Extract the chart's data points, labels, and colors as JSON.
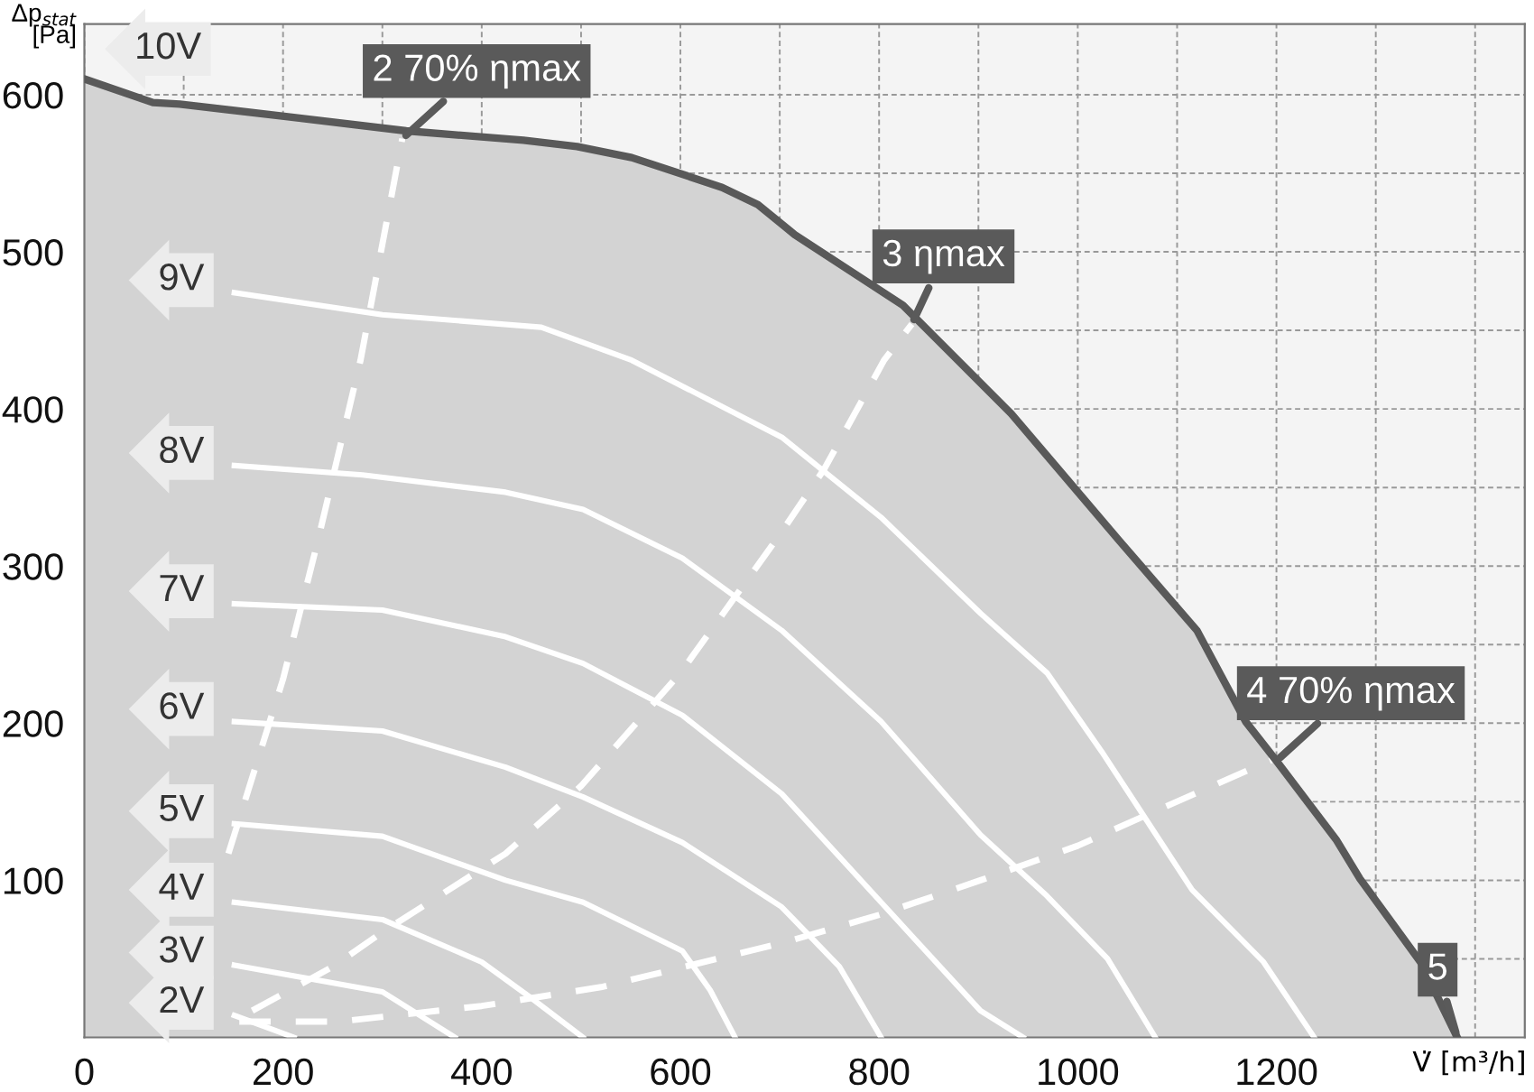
{
  "chart_data": {
    "type": "line",
    "xlabel": "V̇ [m³/h]",
    "ylabel": "Δp$_{stat}$\n[Pa]",
    "xlim": [
      0,
      1450
    ],
    "ylim": [
      0,
      645
    ],
    "xticks": [
      0,
      {
        "value": 100,
        "label": null
      },
      200,
      {
        "value": 300,
        "label": null
      },
      400,
      {
        "value": 500,
        "label": null
      },
      600,
      {
        "value": 700,
        "label": null
      },
      800,
      {
        "value": 900,
        "label": null
      },
      1000,
      {
        "value": 1100,
        "label": null
      },
      1200,
      {
        "value": 1300,
        "label": null
      },
      {
        "value": 1400,
        "label": null
      }
    ],
    "yticks": [
      {
        "value": 50,
        "label": null
      },
      100,
      {
        "value": 150,
        "label": null
      },
      200,
      {
        "value": 250,
        "label": null
      },
      300,
      {
        "value": 350,
        "label": null
      },
      400,
      {
        "value": 450,
        "label": null
      },
      500,
      {
        "value": 550,
        "label": null
      },
      600
    ],
    "grid": true,
    "legend": false,
    "line_style": "solid",
    "series": [
      {
        "name": "10V",
        "type": "area",
        "color": "#d3d3d3",
        "x": [
          0,
          69,
          96,
          205,
          324,
          442,
          496,
          551,
          642,
          678,
          715,
          824,
          933,
          1042,
          1120,
          1169,
          1200,
          1260,
          1284,
          1345,
          1382
        ],
        "values": [
          610,
          595,
          594,
          586,
          577,
          571,
          567,
          560,
          541,
          530,
          511,
          466,
          397,
          316,
          259,
          201,
          176,
          126,
          101,
          48,
          0
        ]
      },
      {
        "name": "9V",
        "color": "#ffffff",
        "x": [
          151,
          300,
          460,
          551,
          702,
          802,
          902,
          969,
          1024,
          1115,
          1187,
          1238
        ],
        "values": [
          474,
          460,
          452,
          431,
          382,
          331,
          270,
          232,
          182,
          94,
          48,
          0
        ]
      },
      {
        "name": "8V",
        "color": "#ffffff",
        "x": [
          151,
          280,
          424,
          502,
          602,
          702,
          802,
          902,
          969,
          1030,
          1078
        ],
        "values": [
          364,
          358,
          347,
          336,
          305,
          259,
          201,
          129,
          90,
          50,
          0
        ]
      },
      {
        "name": "7V",
        "color": "#ffffff",
        "x": [
          151,
          300,
          424,
          502,
          602,
          702,
          802,
          902,
          945
        ],
        "values": [
          276,
          272,
          255,
          238,
          205,
          155,
          86,
          17,
          0
        ]
      },
      {
        "name": "6V",
        "color": "#ffffff",
        "x": [
          151,
          300,
          424,
          502,
          602,
          702,
          760,
          802
        ],
        "values": [
          201,
          195,
          172,
          153,
          124,
          83,
          45,
          0
        ]
      },
      {
        "name": "5V",
        "color": "#ffffff",
        "x": [
          151,
          300,
          424,
          502,
          602,
          630,
          655
        ],
        "values": [
          136,
          128,
          100,
          86,
          55,
          30,
          0
        ]
      },
      {
        "name": "4V",
        "color": "#ffffff",
        "x": [
          151,
          300,
          400,
          450,
          502
        ],
        "values": [
          86,
          75,
          48,
          25,
          0
        ]
      },
      {
        "name": "3V",
        "color": "#ffffff",
        "x": [
          151,
          300,
          373
        ],
        "values": [
          46,
          29,
          0
        ]
      },
      {
        "name": "2V",
        "color": "#ffffff",
        "x": [
          151,
          211
        ],
        "values": [
          14,
          0
        ]
      },
      {
        "color": "#ffffff",
        "line_style": "dashed",
        "x": [
          145,
          200,
          235,
          278,
          320
        ],
        "values": [
          117,
          228,
          316,
          431,
          572
        ]
      },
      {
        "color": "#ffffff",
        "line_style": "dashed",
        "x": [
          169,
          250,
          300,
          424,
          500,
          600,
          700,
          745,
          805,
          833
        ],
        "values": [
          17,
          45,
          67,
          117,
          160,
          232,
          320,
          362,
          431,
          454
        ]
      },
      {
        "color": "#ffffff",
        "line_style": "dashed",
        "x": [
          156,
          255,
          400,
          520,
          702,
          800,
          902,
          1000,
          1078,
          1200
        ],
        "values": [
          10,
          10,
          20,
          32,
          60,
          78,
          100,
          122,
          144,
          178
        ]
      }
    ],
    "annotations": [
      {
        "text": "2 70% ηmax",
        "x": 320,
        "y": 572
      },
      {
        "text": "3 ηmax",
        "x": 833,
        "y": 454
      },
      {
        "text": "4 70% ηmax",
        "x": 1200,
        "y": 176
      },
      {
        "text": "5",
        "x": 1382,
        "y": 0
      }
    ]
  }
}
